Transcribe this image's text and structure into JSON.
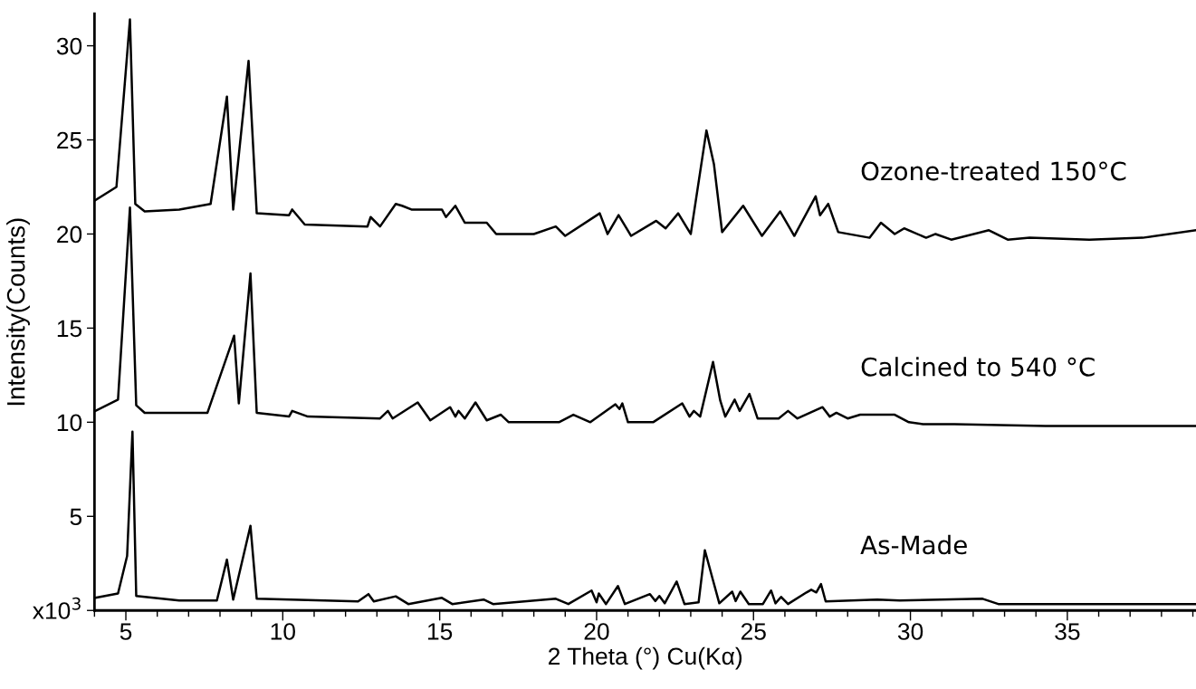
{
  "chart_data": {
    "type": "line",
    "xlabel": "2 Theta (°) Cu(Kα)",
    "ylabel": "Intensity(Counts)",
    "xlim": [
      4,
      39.1
    ],
    "ylim": [
      0,
      31.7
    ],
    "xticks": [
      {
        "value": 4,
        "label": null
      },
      5,
      {
        "value": 6,
        "label": null
      },
      {
        "value": 7,
        "label": null
      },
      {
        "value": 8,
        "label": null
      },
      {
        "value": 9,
        "label": null
      },
      10,
      {
        "value": 11,
        "label": null
      },
      {
        "value": 12,
        "label": null
      },
      {
        "value": 13,
        "label": null
      },
      {
        "value": 14,
        "label": null
      },
      15,
      {
        "value": 16,
        "label": null
      },
      {
        "value": 17,
        "label": null
      },
      {
        "value": 18,
        "label": null
      },
      {
        "value": 19,
        "label": null
      },
      20,
      {
        "value": 21,
        "label": null
      },
      {
        "value": 22,
        "label": null
      },
      {
        "value": 23,
        "label": null
      },
      {
        "value": 24,
        "label": null
      },
      25,
      {
        "value": 26,
        "label": null
      },
      {
        "value": 27,
        "label": null
      },
      {
        "value": 28,
        "label": null
      },
      {
        "value": 29,
        "label": null
      },
      30,
      {
        "value": 31,
        "label": null
      },
      {
        "value": 32,
        "label": null
      },
      {
        "value": 33,
        "label": null
      },
      {
        "value": 34,
        "label": null
      },
      35,
      {
        "value": 36,
        "label": null
      },
      {
        "value": 37,
        "label": null
      },
      {
        "value": 38,
        "label": null
      },
      {
        "value": 39,
        "label": null
      }
    ],
    "yticks": [
      {
        "value": 0,
        "label": "x10$^{3}$"
      },
      5,
      10,
      15,
      20,
      25,
      30
    ],
    "grid": false,
    "legend": false,
    "marker": "none",
    "line_style": "solid",
    "series": [
      {
        "name": "Ozone-treated 150°C",
        "color": "#000000",
        "x": [
          4.03,
          4.7,
          5.13,
          5.3,
          5.6,
          6.7,
          7.7,
          8.22,
          8.42,
          8.91,
          9.17,
          10.2,
          10.3,
          10.7,
          12.7,
          12.8,
          13.1,
          13.6,
          13.8,
          14.1,
          15.07,
          15.2,
          15.5,
          15.8,
          16.5,
          16.8,
          18.0,
          18.7,
          19.0,
          20.1,
          20.35,
          20.7,
          21.1,
          21.9,
          22.2,
          22.6,
          23.0,
          23.5,
          23.74,
          24.0,
          24.67,
          25.27,
          25.85,
          26.3,
          26.98,
          27.12,
          27.38,
          27.7,
          28.7,
          29.06,
          29.5,
          29.8,
          30.5,
          30.8,
          31.3,
          32.5,
          33.1,
          33.8,
          35.7,
          37.4,
          39.1
        ],
        "values": [
          21.8,
          22.5,
          31.4,
          21.6,
          21.2,
          21.3,
          21.6,
          27.3,
          21.3,
          29.2,
          21.1,
          21.0,
          21.3,
          20.5,
          20.4,
          20.9,
          20.4,
          21.6,
          21.5,
          21.3,
          21.3,
          20.9,
          21.5,
          20.6,
          20.6,
          20.0,
          20.0,
          20.4,
          19.9,
          21.1,
          20.0,
          21.0,
          19.9,
          20.7,
          20.3,
          21.1,
          20.0,
          25.5,
          23.7,
          20.1,
          21.5,
          19.9,
          21.2,
          19.9,
          22.0,
          21.0,
          21.6,
          20.1,
          19.8,
          20.6,
          20.0,
          20.3,
          19.8,
          20.0,
          19.7,
          20.2,
          19.7,
          19.8,
          19.7,
          19.8,
          20.2
        ]
      },
      {
        "name": "Calcined to 540 °C",
        "color": "#000000",
        "x": [
          4.03,
          4.75,
          5.13,
          5.33,
          5.6,
          7.6,
          8.45,
          8.6,
          8.97,
          9.17,
          10.2,
          10.3,
          10.8,
          13.1,
          13.35,
          13.5,
          14.3,
          14.7,
          15.33,
          15.5,
          15.6,
          15.8,
          16.14,
          16.5,
          16.95,
          17.2,
          18.8,
          19.26,
          19.8,
          20.6,
          20.73,
          20.82,
          21.0,
          21.8,
          22.73,
          22.96,
          23.1,
          23.3,
          23.71,
          23.94,
          24.1,
          24.4,
          24.56,
          24.87,
          25.13,
          25.8,
          26.1,
          26.4,
          27.2,
          27.43,
          27.64,
          28.0,
          28.4,
          29.5,
          29.95,
          30.4,
          31.4,
          34.3,
          39.1
        ],
        "values": [
          10.6,
          11.2,
          21.4,
          10.9,
          10.5,
          10.5,
          14.6,
          11.0,
          17.9,
          10.5,
          10.3,
          10.6,
          10.3,
          10.2,
          10.6,
          10.2,
          11.05,
          10.1,
          10.8,
          10.3,
          10.6,
          10.2,
          11.05,
          10.1,
          10.4,
          10.0,
          10.0,
          10.4,
          10.0,
          10.95,
          10.7,
          11.0,
          10.0,
          10.0,
          11.0,
          10.3,
          10.6,
          10.3,
          13.2,
          11.15,
          10.3,
          11.2,
          10.6,
          11.5,
          10.2,
          10.2,
          10.6,
          10.2,
          10.8,
          10.3,
          10.5,
          10.2,
          10.4,
          10.4,
          10.0,
          9.9,
          9.9,
          9.8,
          9.8
        ]
      },
      {
        "name": "As-Made",
        "color": "#000000",
        "x": [
          4.03,
          4.75,
          5.04,
          5.21,
          5.33,
          6.7,
          7.9,
          8.22,
          8.42,
          8.97,
          9.17,
          12.4,
          12.73,
          12.9,
          13.6,
          14.0,
          15.07,
          15.4,
          16.4,
          16.7,
          18.7,
          19.1,
          19.84,
          20.0,
          20.07,
          20.3,
          20.68,
          20.9,
          21.7,
          21.87,
          22.0,
          22.17,
          22.55,
          22.8,
          23.25,
          23.45,
          23.71,
          23.91,
          24.32,
          24.43,
          24.58,
          24.85,
          25.3,
          25.56,
          25.7,
          25.88,
          26.1,
          26.69,
          26.84,
          27.0,
          27.15,
          27.3,
          28.94,
          29.66,
          32.3,
          32.8,
          39.1
        ],
        "values": [
          0.67,
          0.9,
          2.9,
          9.5,
          0.77,
          0.53,
          0.53,
          2.7,
          0.58,
          4.5,
          0.62,
          0.48,
          0.87,
          0.48,
          0.75,
          0.34,
          0.67,
          0.34,
          0.58,
          0.34,
          0.62,
          0.34,
          1.06,
          0.43,
          0.9,
          0.34,
          1.3,
          0.34,
          0.87,
          0.5,
          0.77,
          0.38,
          1.54,
          0.34,
          0.43,
          3.2,
          1.6,
          0.38,
          1.0,
          0.5,
          1.0,
          0.34,
          0.34,
          1.06,
          0.38,
          0.72,
          0.34,
          0.96,
          1.1,
          0.96,
          1.4,
          0.48,
          0.58,
          0.53,
          0.62,
          0.34,
          0.34
        ]
      }
    ]
  }
}
